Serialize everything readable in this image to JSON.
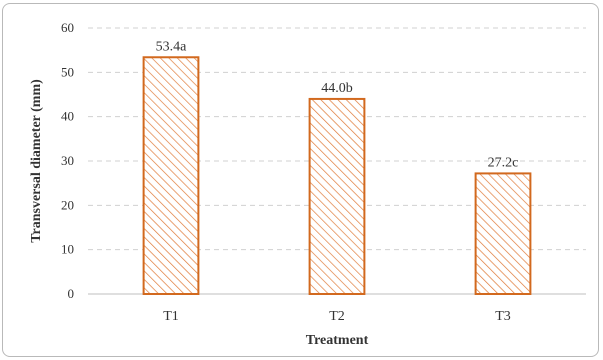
{
  "chart_data": {
    "type": "bar",
    "title": "",
    "xlabel": "Treatment",
    "ylabel": "Transversal  diameter (mm)",
    "categories": [
      "T1",
      "T2",
      "T3"
    ],
    "values": [
      53.4,
      44.0,
      27.2
    ],
    "data_labels": [
      "53.4a",
      "44.0b",
      "27.2c"
    ],
    "y_ticks": [
      "0",
      "10",
      "20",
      "30",
      "40",
      "50",
      "60"
    ],
    "ylim": [
      0,
      60
    ],
    "grid": "horizontal dashed",
    "legend": "none",
    "colors": {
      "bar_stroke": "#d2691e",
      "hatch": "#e07b39",
      "grid": "#d0d0d0",
      "axis": "#bfbfbf",
      "text": "#333333"
    }
  }
}
